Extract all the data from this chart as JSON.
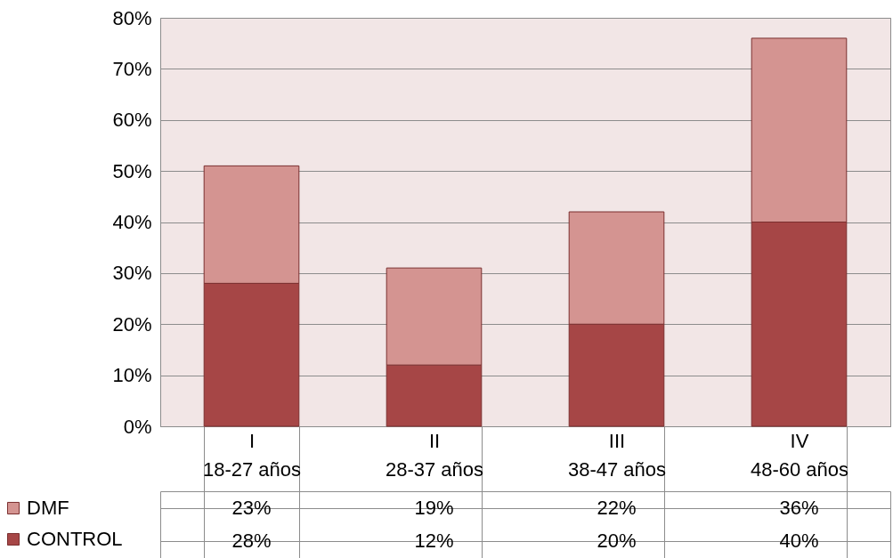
{
  "chart_data": {
    "type": "bar",
    "stacked": true,
    "categories": [
      "I\n18-27 años",
      "II\n28-37 años",
      "III\n38-47 años",
      "IV\n48-60 años"
    ],
    "series": [
      {
        "name": "CONTROL",
        "color": "#a64646",
        "values": [
          28,
          12,
          20,
          40
        ],
        "value_labels": [
          "28%",
          "12%",
          "20%",
          "40%"
        ]
      },
      {
        "name": "DMF",
        "color": "#d49491",
        "values": [
          23,
          19,
          22,
          36
        ],
        "value_labels": [
          "23%",
          "19%",
          "22%",
          "36%"
        ]
      }
    ],
    "ylim": [
      0,
      80
    ],
    "yticks": [
      {
        "value": 0,
        "label": "0%"
      },
      {
        "value": 10,
        "label": "10%"
      },
      {
        "value": 20,
        "label": "20%"
      },
      {
        "value": 30,
        "label": "30%"
      },
      {
        "value": 40,
        "label": "40%"
      },
      {
        "value": 50,
        "label": "50%"
      },
      {
        "value": 60,
        "label": "60%"
      },
      {
        "value": 70,
        "label": "70%"
      },
      {
        "value": 80,
        "label": "80%"
      }
    ],
    "grid": "y",
    "legend": "bottom left"
  }
}
